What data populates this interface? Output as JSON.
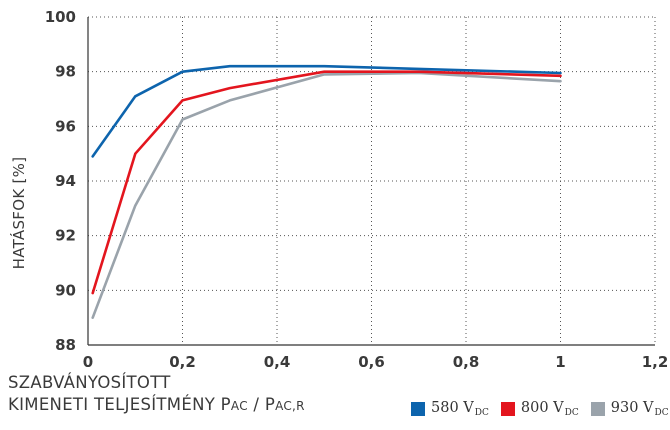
{
  "chart_data": {
    "type": "line",
    "ylabel": "HATÁSFOK [%]",
    "xlabel_line1": "SZABVÁNYOSÍTOTT",
    "xlabel_line2_prefix": "KIMENETI TELJESÍTMÉNY P",
    "xlabel_sub1": "AC",
    "xlabel_mid": " / P",
    "xlabel_sub2": "AC,R",
    "xlim": [
      0,
      1.2
    ],
    "ylim": [
      88,
      100
    ],
    "x_ticks": [
      0,
      0.2,
      0.4,
      0.6,
      0.8,
      1,
      1.2
    ],
    "x_tick_labels": [
      "0",
      "0,2",
      "0,4",
      "0,6",
      "0,8",
      "1",
      "1,2"
    ],
    "y_ticks": [
      88,
      90,
      92,
      94,
      96,
      98,
      100
    ],
    "y_tick_labels": [
      "88",
      "90",
      "92",
      "94",
      "96",
      "98",
      "100"
    ],
    "grid": true,
    "legend_position": "bottom-right",
    "series": [
      {
        "name": "580 V",
        "name_sub": "DC",
        "color": "#0d64ad",
        "x": [
          0.01,
          0.1,
          0.2,
          0.3,
          0.5,
          0.7,
          1.0
        ],
        "y": [
          94.9,
          97.1,
          98.0,
          98.2,
          98.2,
          98.1,
          97.95
        ]
      },
      {
        "name": "800 V",
        "name_sub": "DC",
        "color": "#e3151e",
        "x": [
          0.01,
          0.1,
          0.2,
          0.3,
          0.5,
          0.7,
          1.0
        ],
        "y": [
          89.9,
          95.0,
          96.95,
          97.4,
          98.0,
          98.0,
          97.85
        ]
      },
      {
        "name": "930 V",
        "name_sub": "DC",
        "color": "#9aa3ab",
        "x": [
          0.01,
          0.1,
          0.2,
          0.3,
          0.5,
          0.7,
          1.0
        ],
        "y": [
          89.0,
          93.1,
          96.25,
          96.95,
          97.9,
          97.95,
          97.65
        ]
      }
    ]
  }
}
